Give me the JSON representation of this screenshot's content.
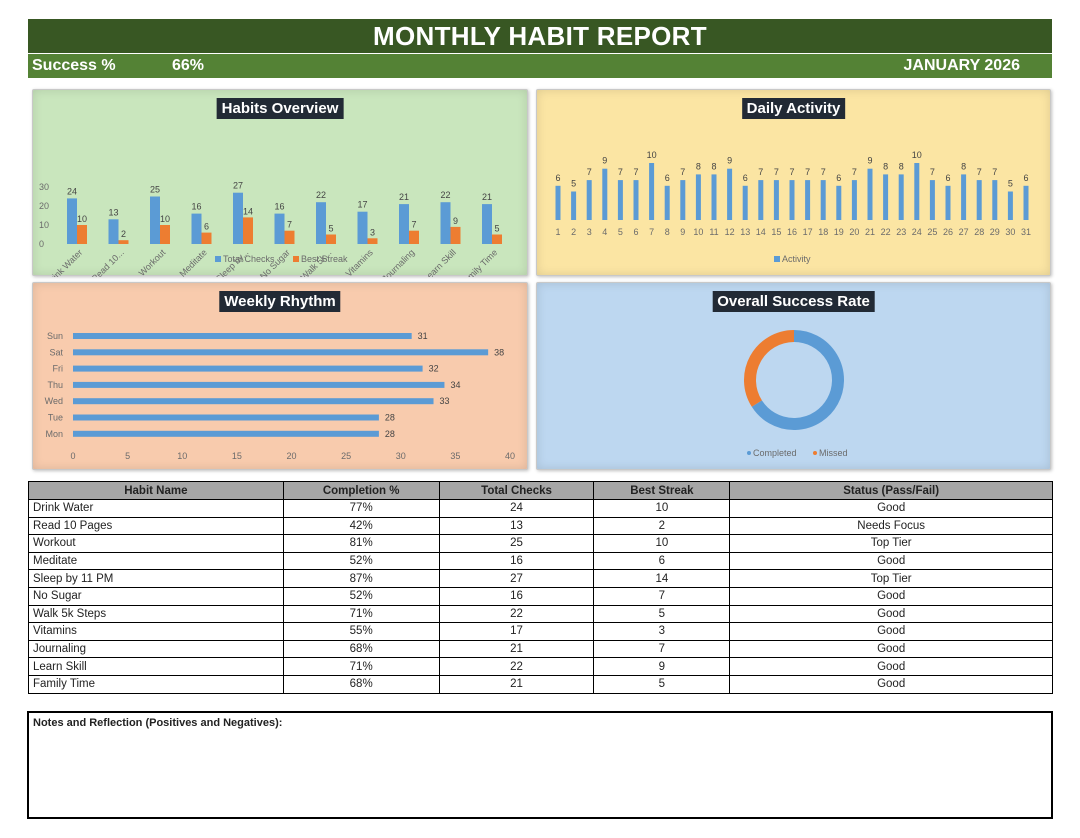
{
  "header": {
    "title": "MONTHLY HABIT REPORT",
    "success_label": "Success %",
    "success_value": "66%",
    "month": "JANUARY 2026"
  },
  "panels": {
    "habits_title": "Habits Overview",
    "daily_title": "Daily Activity",
    "weekly_title": "Weekly Rhythm",
    "success_title": "Overall Success Rate"
  },
  "colors": {
    "blue": "#5b9bd5",
    "orange": "#ed7d31",
    "header_dark_green": "#385723",
    "header_green": "#548235"
  },
  "chart_data": [
    {
      "type": "bar",
      "title": "Habits Overview",
      "categories": [
        "Drink Water",
        "Read 10...",
        "Workout",
        "Meditate",
        "Sleep by...",
        "No Sugar",
        "Walk 5k...",
        "Vitamins",
        "Journaling",
        "Learn Skill",
        "Family Time"
      ],
      "series": [
        {
          "name": "Total Checks",
          "values": [
            24,
            13,
            25,
            16,
            27,
            16,
            22,
            17,
            21,
            22,
            21
          ]
        },
        {
          "name": "Best Streak",
          "values": [
            10,
            2,
            10,
            6,
            14,
            7,
            5,
            3,
            7,
            9,
            5
          ]
        }
      ],
      "yticks": [
        "0",
        "10",
        "20",
        "30"
      ],
      "ylim": [
        0,
        30
      ],
      "legend": "bottom"
    },
    {
      "type": "bar",
      "title": "Daily Activity",
      "categories": [
        "1",
        "2",
        "3",
        "4",
        "5",
        "6",
        "7",
        "8",
        "9",
        "10",
        "11",
        "12",
        "13",
        "14",
        "15",
        "16",
        "17",
        "18",
        "19",
        "20",
        "21",
        "22",
        "23",
        "24",
        "25",
        "26",
        "27",
        "28",
        "29",
        "30",
        "31"
      ],
      "series": [
        {
          "name": "Activity",
          "values": [
            6,
            5,
            7,
            9,
            7,
            7,
            10,
            6,
            7,
            8,
            8,
            9,
            6,
            7,
            7,
            7,
            7,
            7,
            6,
            7,
            9,
            8,
            8,
            10,
            7,
            6,
            8,
            7,
            7,
            5,
            6
          ]
        }
      ],
      "ylim": [
        0,
        10
      ],
      "legend": "bottom"
    },
    {
      "type": "bar",
      "orientation": "horizontal",
      "title": "Weekly Rhythm",
      "categories": [
        "Sun",
        "Sat",
        "Fri",
        "Thu",
        "Wed",
        "Tue",
        "Mon"
      ],
      "values": [
        31,
        38,
        32,
        34,
        33,
        28,
        28
      ],
      "xticks": [
        "0",
        "5",
        "10",
        "15",
        "20",
        "25",
        "30",
        "35",
        "40"
      ],
      "xlim": [
        0,
        40
      ]
    },
    {
      "type": "pie",
      "style": "doughnut",
      "title": "Overall Success Rate",
      "labels": [
        "Completed",
        "Missed"
      ],
      "values": [
        66,
        34
      ],
      "legend": "bottom"
    }
  ],
  "table": {
    "headers": [
      "Habit Name",
      "Completion %",
      "Total Checks",
      "Best Streak",
      "Status (Pass/Fail)"
    ],
    "rows": [
      [
        "Drink Water",
        "77%",
        "24",
        "10",
        "Good"
      ],
      [
        "Read 10 Pages",
        "42%",
        "13",
        "2",
        "Needs Focus"
      ],
      [
        "Workout",
        "81%",
        "25",
        "10",
        "Top Tier"
      ],
      [
        "Meditate",
        "52%",
        "16",
        "6",
        "Good"
      ],
      [
        "Sleep by 11 PM",
        "87%",
        "27",
        "14",
        "Top Tier"
      ],
      [
        "No Sugar",
        "52%",
        "16",
        "7",
        "Good"
      ],
      [
        "Walk 5k Steps",
        "71%",
        "22",
        "5",
        "Good"
      ],
      [
        "Vitamins",
        "55%",
        "17",
        "3",
        "Good"
      ],
      [
        "Journaling",
        "68%",
        "21",
        "7",
        "Good"
      ],
      [
        "Learn Skill",
        "71%",
        "22",
        "9",
        "Good"
      ],
      [
        "Family Time",
        "68%",
        "21",
        "5",
        "Good"
      ]
    ]
  },
  "notes": {
    "label": "Notes and Reflection (Positives and Negatives):"
  }
}
